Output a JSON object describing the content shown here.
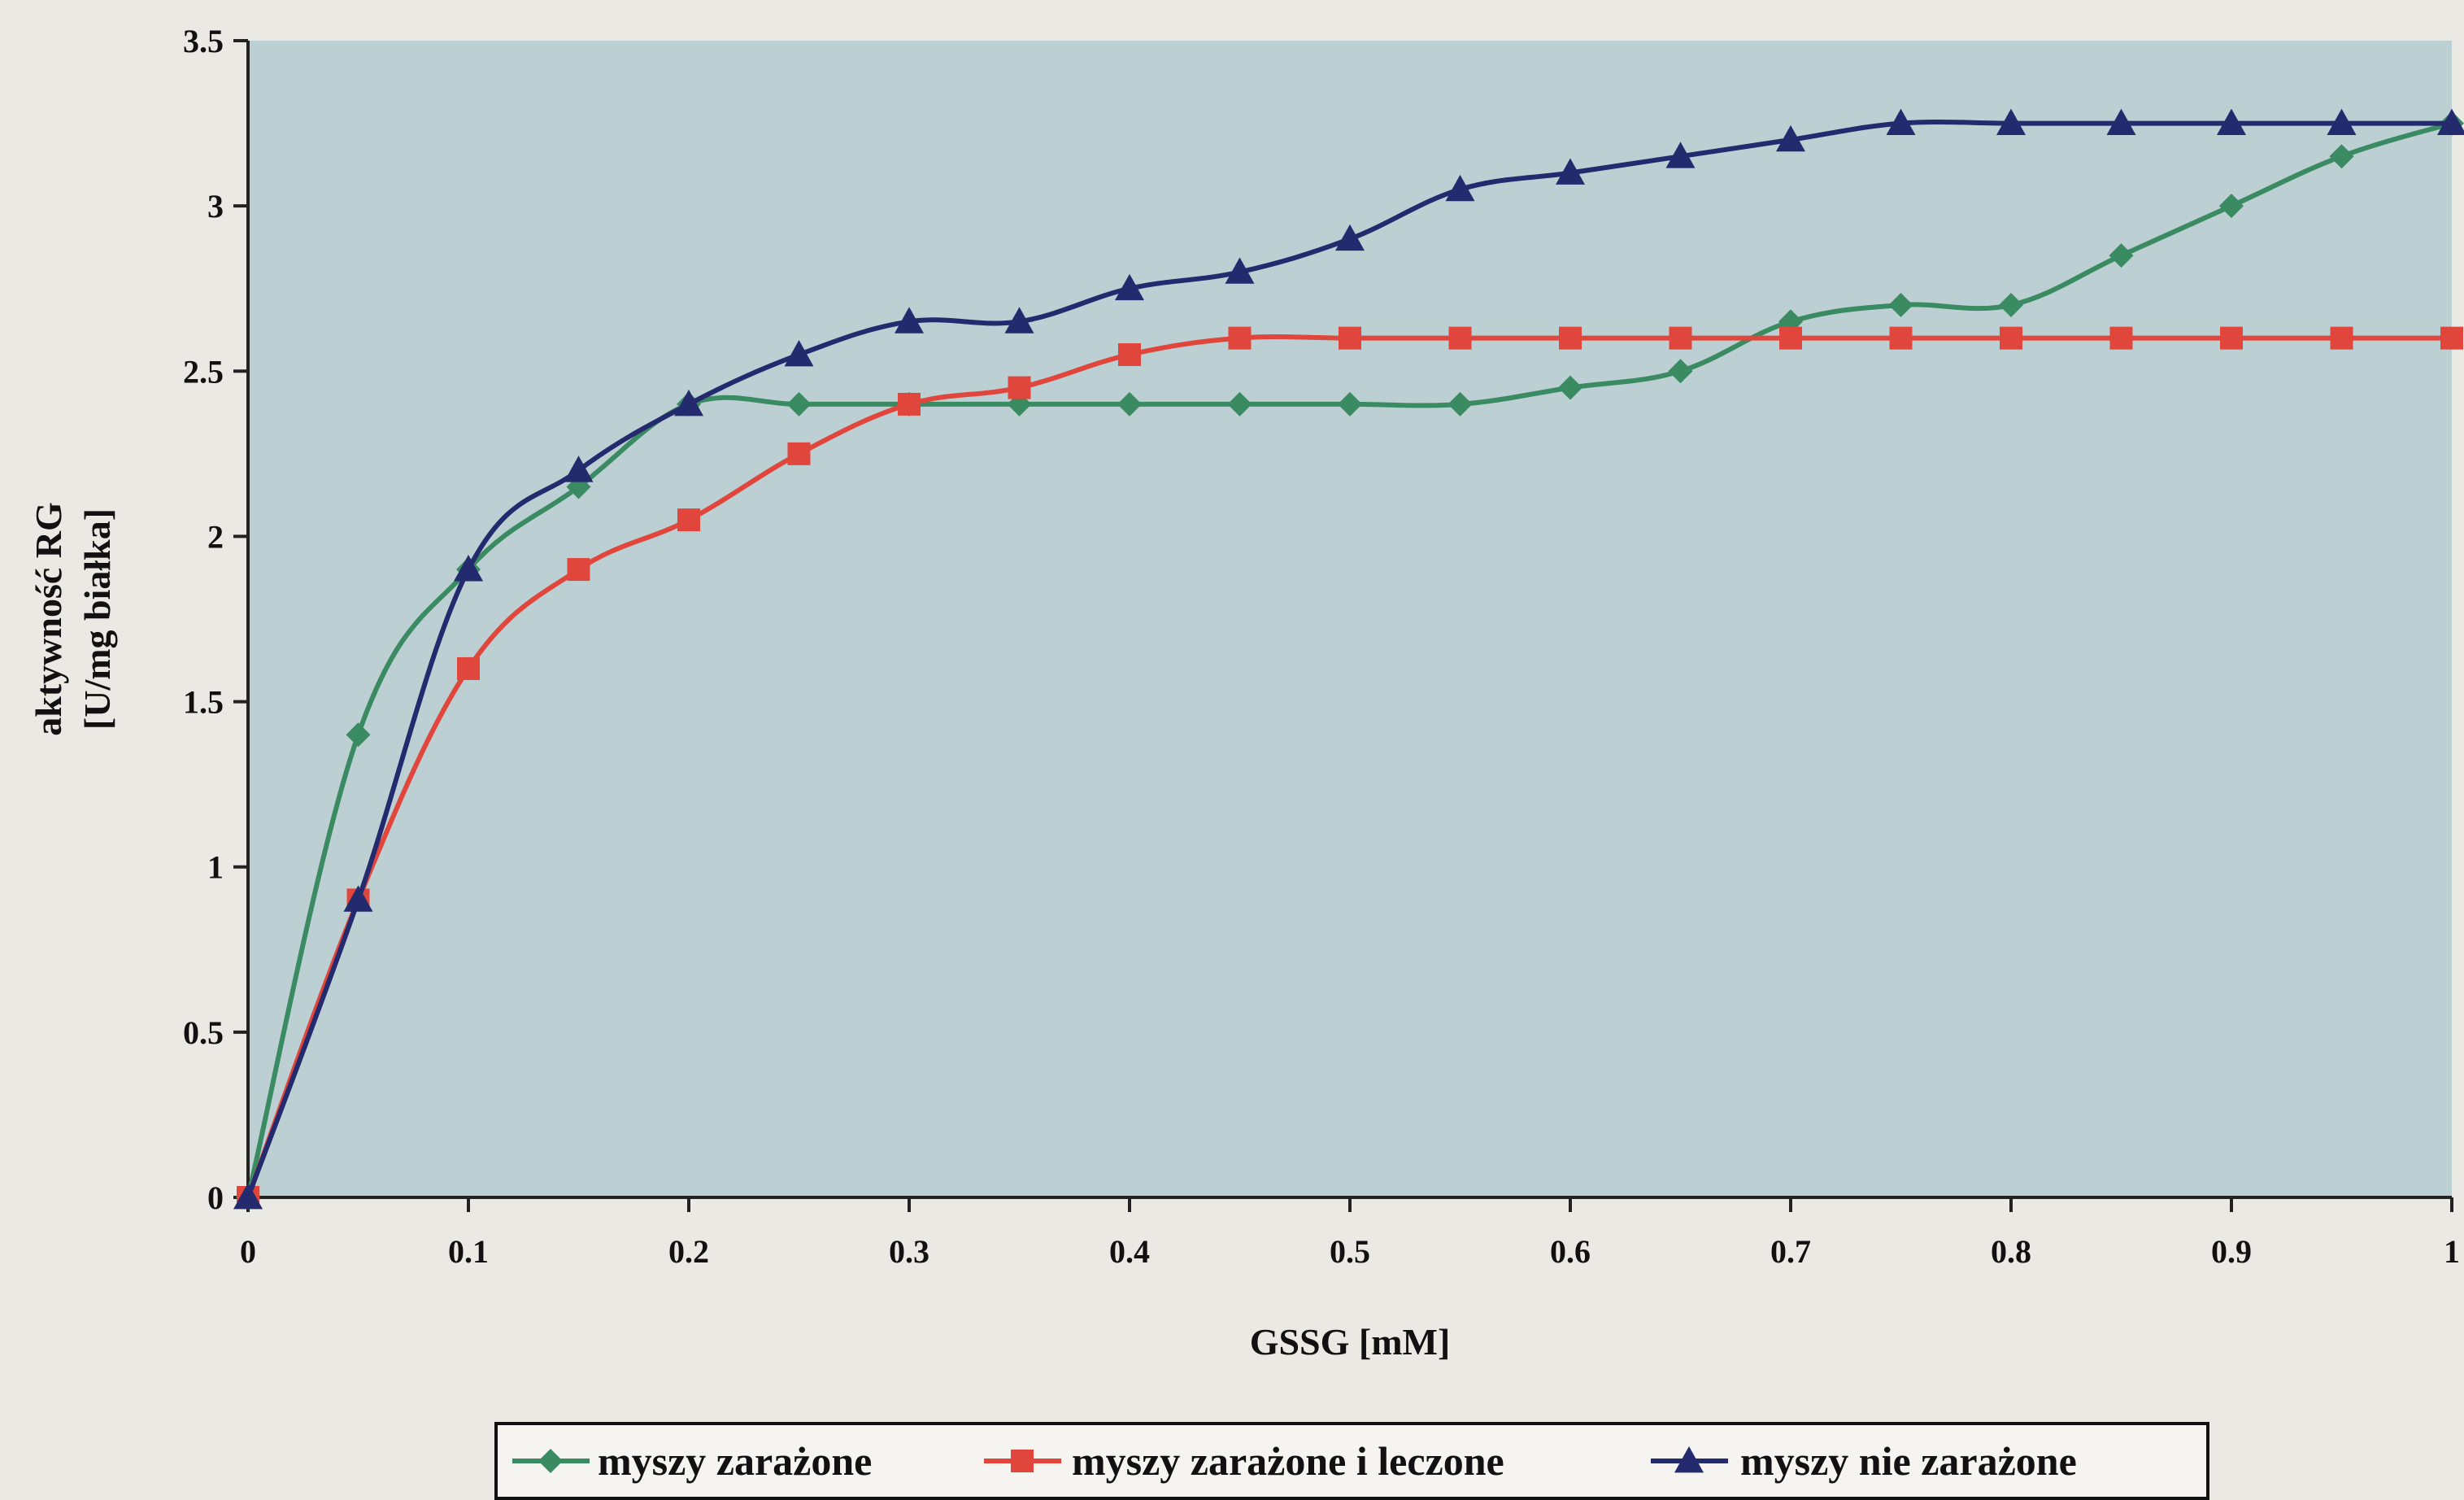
{
  "chart_data": {
    "type": "line",
    "title": "",
    "xlabel": "GSSG [mM]",
    "ylabel": [
      "aktywność RG",
      "[U/mg białka]"
    ],
    "xlim": [
      0,
      1
    ],
    "ylim": [
      0,
      3.5
    ],
    "xticks": [
      "0",
      "0.1",
      "0.2",
      "0.3",
      "0.4",
      "0.5",
      "0.6",
      "0.7",
      "0.8",
      "0.9",
      "1"
    ],
    "yticks": [
      "0",
      "0.5",
      "1",
      "1.5",
      "2",
      "2.5",
      "3",
      "3.5"
    ],
    "grid": false,
    "legend_position": "bottom",
    "plot_background": "#bcd0d4",
    "series": [
      {
        "name": "myszy zarażone",
        "color": "#3a8a62",
        "marker": "diamond",
        "x": [
          0,
          0.05,
          0.1,
          0.15,
          0.2,
          0.25,
          0.3,
          0.35,
          0.4,
          0.45,
          0.5,
          0.55,
          0.6,
          0.65,
          0.7,
          0.75,
          0.8,
          0.85,
          0.9,
          0.95,
          1
        ],
        "y": [
          0,
          1.4,
          1.9,
          2.15,
          2.4,
          2.4,
          2.4,
          2.4,
          2.4,
          2.4,
          2.4,
          2.4,
          2.45,
          2.5,
          2.65,
          2.7,
          2.7,
          2.85,
          3.0,
          3.15,
          3.25
        ]
      },
      {
        "name": "myszy zarażone i leczone",
        "color": "#e0463b",
        "marker": "square",
        "x": [
          0,
          0.05,
          0.1,
          0.15,
          0.2,
          0.25,
          0.3,
          0.35,
          0.4,
          0.45,
          0.5,
          0.55,
          0.6,
          0.65,
          0.7,
          0.75,
          0.8,
          0.85,
          0.9,
          0.95,
          1
        ],
        "y": [
          0,
          0.9,
          1.6,
          1.9,
          2.05,
          2.25,
          2.4,
          2.45,
          2.55,
          2.6,
          2.6,
          2.6,
          2.6,
          2.6,
          2.6,
          2.6,
          2.6,
          2.6,
          2.6,
          2.6,
          2.6
        ]
      },
      {
        "name": "myszy nie zarażone",
        "color": "#232a6e",
        "marker": "triangle",
        "x": [
          0,
          0.05,
          0.1,
          0.15,
          0.2,
          0.25,
          0.3,
          0.35,
          0.4,
          0.45,
          0.5,
          0.55,
          0.6,
          0.65,
          0.7,
          0.75,
          0.8,
          0.85,
          0.9,
          0.95,
          1
        ],
        "y": [
          0,
          0.9,
          1.9,
          2.2,
          2.4,
          2.55,
          2.65,
          2.65,
          2.75,
          2.8,
          2.9,
          3.05,
          3.1,
          3.15,
          3.2,
          3.25,
          3.25,
          3.25,
          3.25,
          3.25,
          3.25
        ]
      }
    ]
  }
}
